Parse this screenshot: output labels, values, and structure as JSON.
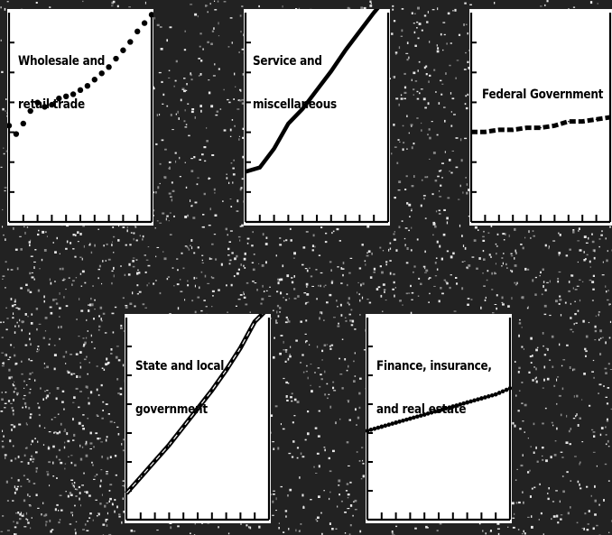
{
  "chart_data": [
    {
      "type": "line",
      "title_lines": [
        "Wholesale and",
        "retail trade"
      ],
      "line_style": "dotted",
      "x": [
        0,
        1,
        2,
        3,
        4,
        5,
        6,
        7,
        8,
        9,
        10,
        11,
        12,
        13,
        14,
        15,
        16,
        17,
        18,
        19,
        20
      ],
      "values": [
        0.46,
        0.42,
        0.47,
        0.53,
        0.57,
        0.55,
        0.56,
        0.59,
        0.6,
        0.61,
        0.63,
        0.65,
        0.68,
        0.71,
        0.74,
        0.78,
        0.82,
        0.86,
        0.91,
        0.95,
        0.99
      ],
      "ylim": [
        0,
        1
      ],
      "xticks": 11,
      "yticks": 7
    },
    {
      "type": "line",
      "title_lines": [
        "Service and",
        "miscellaneous"
      ],
      "line_style": "solid",
      "x": [
        0,
        1,
        2,
        3,
        4,
        5,
        6,
        7,
        8,
        9,
        10
      ],
      "values": [
        0.24,
        0.26,
        0.35,
        0.47,
        0.54,
        0.63,
        0.72,
        0.82,
        0.91,
        1.0,
        1.08
      ],
      "ylim": [
        0,
        1
      ],
      "xticks": 11,
      "yticks": 7
    },
    {
      "type": "line",
      "title_lines": [
        "Federal Government"
      ],
      "line_style": "dashed",
      "x": [
        0,
        1,
        2,
        3,
        4,
        5,
        6,
        7,
        8,
        9,
        10
      ],
      "values": [
        0.43,
        0.43,
        0.44,
        0.44,
        0.45,
        0.45,
        0.46,
        0.48,
        0.48,
        0.49,
        0.5
      ],
      "ylim": [
        0,
        1
      ],
      "xticks": 11,
      "yticks": 7
    },
    {
      "type": "line",
      "title_lines": [
        "State and local",
        "government"
      ],
      "line_style": "double",
      "x": [
        0,
        1,
        2,
        3,
        4,
        5,
        6,
        7,
        8,
        9,
        10
      ],
      "values": [
        0.13,
        0.21,
        0.29,
        0.37,
        0.46,
        0.55,
        0.64,
        0.74,
        0.85,
        0.98,
        1.05
      ],
      "ylim": [
        0,
        1
      ],
      "xticks": 11,
      "yticks": 7
    },
    {
      "type": "line",
      "title_lines": [
        "Finance, insurance,",
        "and real estate"
      ],
      "line_style": "beaded",
      "x": [
        0,
        1,
        2,
        3,
        4,
        5,
        6,
        7,
        8,
        9,
        10
      ],
      "values": [
        0.44,
        0.46,
        0.48,
        0.5,
        0.52,
        0.54,
        0.56,
        0.58,
        0.6,
        0.62,
        0.65
      ],
      "ylim": [
        0,
        1
      ],
      "xticks": 11,
      "yticks": 7
    }
  ]
}
